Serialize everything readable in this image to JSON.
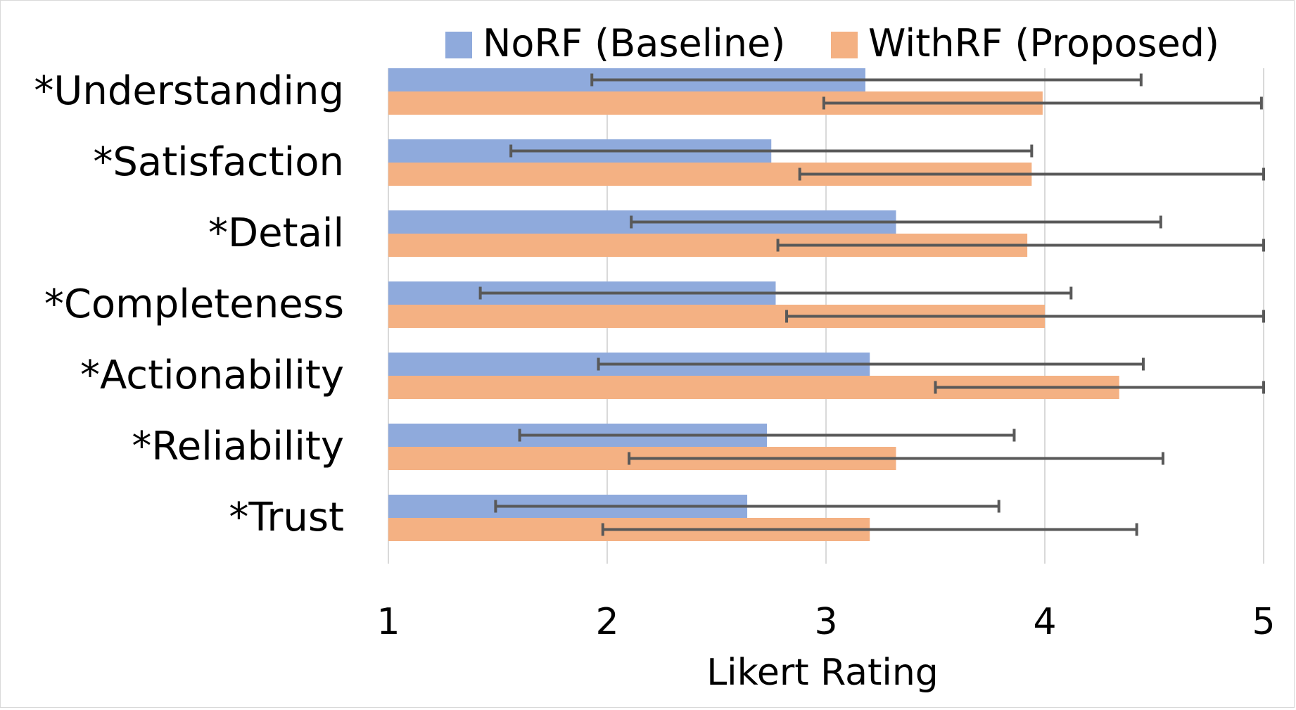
{
  "chart_data": {
    "type": "bar",
    "orientation": "horizontal",
    "title": "",
    "xlabel": "Likert Rating",
    "ylabel": "",
    "xlim": [
      1,
      5
    ],
    "xticks": [
      1,
      2,
      3,
      4,
      5
    ],
    "grid": true,
    "legend_position": "top",
    "categories": [
      "*Understanding",
      "*Satisfaction",
      "*Detail",
      "*Completeness",
      "*Actionability",
      "*Reliability",
      "*Trust"
    ],
    "series": [
      {
        "name": "NoRF (Baseline)",
        "color": "#8FAADC",
        "values": [
          3.18,
          2.75,
          3.32,
          2.77,
          3.2,
          2.73,
          2.64
        ],
        "err_low": [
          1.93,
          1.56,
          2.11,
          1.42,
          1.96,
          1.6,
          1.49
        ],
        "err_high": [
          4.44,
          3.94,
          4.53,
          4.12,
          4.45,
          3.86,
          3.79
        ]
      },
      {
        "name": "WithRF (Proposed)",
        "color": "#F4B183",
        "values": [
          3.99,
          3.94,
          3.92,
          4.0,
          4.34,
          3.32,
          3.2
        ],
        "err_low": [
          2.99,
          2.88,
          2.78,
          2.82,
          3.5,
          2.1,
          1.98
        ],
        "err_high": [
          4.99,
          5.0,
          5.0,
          5.0,
          5.0,
          4.54,
          4.42
        ]
      }
    ]
  }
}
